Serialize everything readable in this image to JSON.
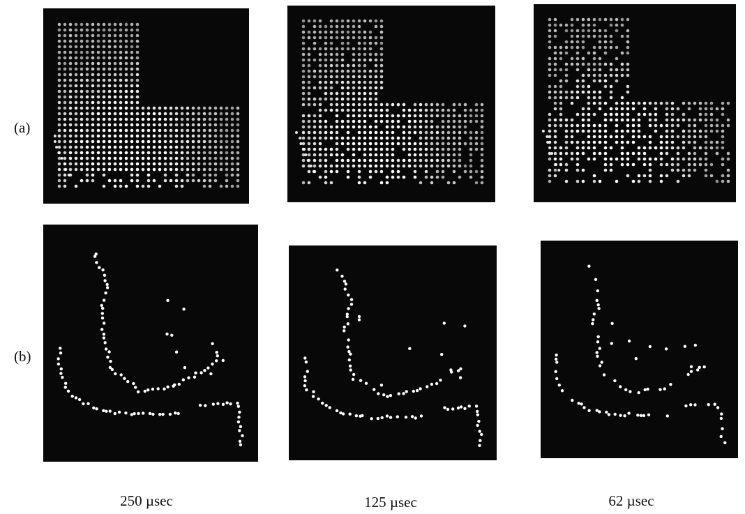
{
  "row_labels": [
    "(a)",
    "(b)"
  ],
  "column_labels": [
    "250 µsec",
    "125 µsec",
    "62 µsec"
  ]
}
